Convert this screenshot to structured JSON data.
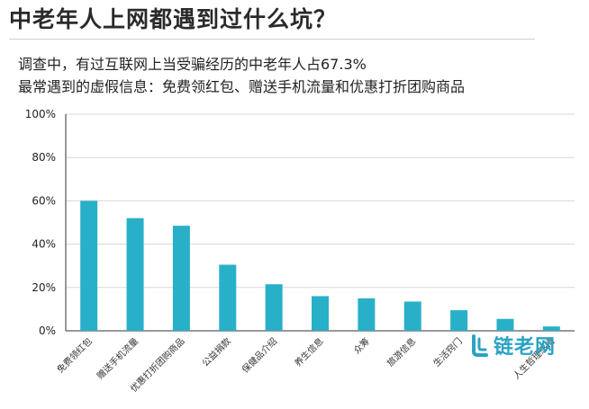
{
  "title": "中老年人上网都遇到过什么坑？",
  "subtitle_lines": [
    "调查中，有过互联网上当受骗经历的中老年人占67.3%",
    "最常遇到的虚假信息：免费领红包、赠送手机流量和优惠打折团购商品"
  ],
  "watermark": "链老网",
  "colors": {
    "bar": "#29b0c9",
    "grid": "#d8d8d8",
    "axis": "#333333",
    "logo": "#2ba3c3"
  },
  "chart_data": {
    "type": "bar",
    "title": "",
    "xlabel": "",
    "ylabel": "",
    "ylim": [
      0,
      100
    ],
    "y_ticks": [
      "0%",
      "20%",
      "40%",
      "60%",
      "80%",
      "100%"
    ],
    "grid": true,
    "categories": [
      "免费领红包",
      "赠送手机流量",
      "优惠打折团购商品",
      "公益捐款",
      "保健品介绍",
      "养生信息",
      "众筹",
      "旅游信息",
      "生活窍门",
      "",
      "人生哲理感悟"
    ],
    "values": [
      60,
      52,
      48.5,
      30.5,
      21.5,
      16,
      15,
      13.5,
      9.5,
      5.5,
      2
    ]
  }
}
